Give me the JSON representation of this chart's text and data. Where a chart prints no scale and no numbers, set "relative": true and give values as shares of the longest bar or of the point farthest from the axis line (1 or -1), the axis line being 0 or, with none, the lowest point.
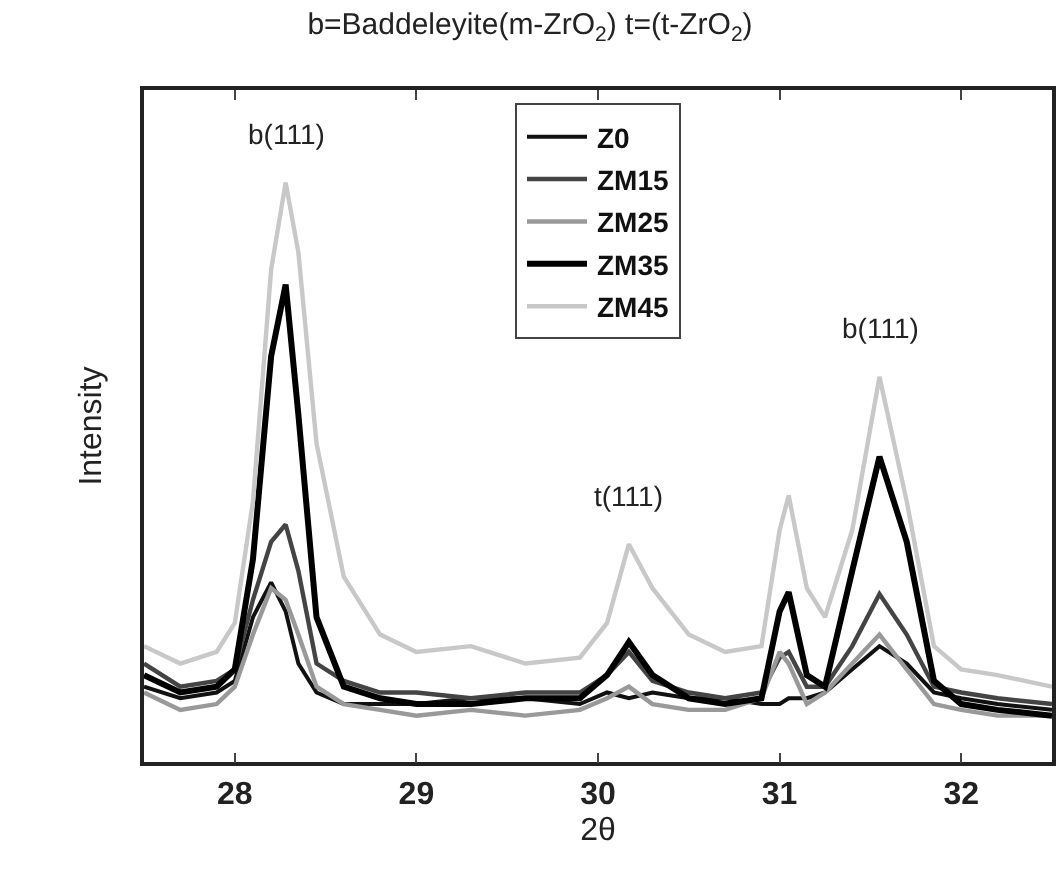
{
  "chart_data": {
    "type": "line",
    "title": "b=Baddeleyite(m-ZrO$_{2}$) t=(t-ZrO$_{2}$)",
    "xlabel": "2θ",
    "ylabel": "Intensity",
    "relative": true,
    "xlim": [
      27.5,
      32.5
    ],
    "xticks": [
      28,
      29,
      30,
      31,
      32
    ],
    "legend": "top",
    "marker": "none",
    "line_style": "solid",
    "x": [
      27.5,
      27.7,
      27.9,
      28.0,
      28.1,
      28.2,
      28.28,
      28.35,
      28.45,
      28.6,
      28.8,
      29.0,
      29.3,
      29.6,
      29.9,
      30.05,
      30.17,
      30.3,
      30.5,
      30.7,
      30.9,
      31.0,
      31.05,
      31.15,
      31.25,
      31.4,
      31.55,
      31.7,
      31.85,
      32.0,
      32.2,
      32.5
    ],
    "series": [
      {
        "name": "Z0",
        "color": "#111111",
        "values": [
          0.13,
          0.11,
          0.12,
          0.14,
          0.25,
          0.31,
          0.26,
          0.17,
          0.12,
          0.1,
          0.1,
          0.1,
          0.11,
          0.11,
          0.1,
          0.12,
          0.11,
          0.12,
          0.11,
          0.11,
          0.1,
          0.1,
          0.11,
          0.11,
          0.12,
          0.16,
          0.2,
          0.17,
          0.12,
          0.11,
          0.1,
          0.09
        ]
      },
      {
        "name": "ZM15",
        "color": "#444444",
        "values": [
          0.17,
          0.13,
          0.14,
          0.16,
          0.28,
          0.38,
          0.41,
          0.33,
          0.17,
          0.14,
          0.12,
          0.12,
          0.11,
          0.12,
          0.12,
          0.15,
          0.19,
          0.14,
          0.12,
          0.11,
          0.12,
          0.18,
          0.19,
          0.13,
          0.13,
          0.2,
          0.29,
          0.22,
          0.13,
          0.12,
          0.11,
          0.1
        ]
      },
      {
        "name": "ZM25",
        "color": "#999999",
        "values": [
          0.12,
          0.09,
          0.1,
          0.13,
          0.22,
          0.3,
          0.28,
          0.22,
          0.13,
          0.1,
          0.09,
          0.08,
          0.09,
          0.08,
          0.09,
          0.11,
          0.13,
          0.1,
          0.09,
          0.09,
          0.11,
          0.19,
          0.17,
          0.1,
          0.12,
          0.17,
          0.22,
          0.16,
          0.1,
          0.09,
          0.08,
          0.08
        ]
      },
      {
        "name": "ZM35",
        "color": "#000000",
        "values": [
          0.15,
          0.12,
          0.13,
          0.16,
          0.35,
          0.7,
          0.824,
          0.6,
          0.25,
          0.13,
          0.11,
          0.1,
          0.1,
          0.11,
          0.11,
          0.15,
          0.207,
          0.15,
          0.11,
          0.1,
          0.11,
          0.26,
          0.293,
          0.15,
          0.13,
          0.33,
          0.527,
          0.38,
          0.14,
          0.1,
          0.09,
          0.08
        ]
      },
      {
        "name": "ZM45",
        "color": "#c8c8c8",
        "values": [
          0.2,
          0.17,
          0.19,
          0.24,
          0.45,
          0.85,
          1.0,
          0.88,
          0.55,
          0.32,
          0.22,
          0.19,
          0.2,
          0.17,
          0.18,
          0.24,
          0.376,
          0.3,
          0.22,
          0.19,
          0.2,
          0.4,
          0.46,
          0.3,
          0.25,
          0.4,
          0.665,
          0.45,
          0.2,
          0.16,
          0.15,
          0.13
        ]
      }
    ],
    "annotations": [
      {
        "text": "b(111)",
        "x": 28.28,
        "y": 1.0
      },
      {
        "text": "t(111)",
        "x": 30.17,
        "y": 0.376
      },
      {
        "text": "b(111)",
        "x": 31.55,
        "y": 0.665
      }
    ]
  }
}
